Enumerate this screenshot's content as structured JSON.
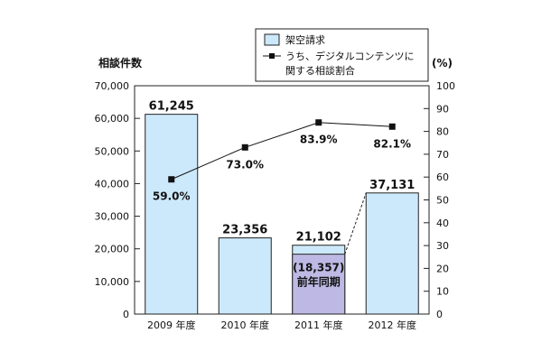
{
  "chart_data": {
    "type": "bar",
    "categories": [
      "2009 年度",
      "2010 年度",
      "2011 年度",
      "2012 年度"
    ],
    "series": [
      {
        "name": "架空請求",
        "values": [
          61245,
          23356,
          21102,
          37131
        ],
        "value_labels": [
          "61,245",
          "23,356",
          "21,102",
          "37,131"
        ],
        "color": "#cce9fb"
      },
      {
        "name": "うち、デジタルコンテンツに関する相談割合",
        "type": "line",
        "axis": "right",
        "values": [
          59.0,
          73.0,
          83.9,
          82.1
        ],
        "value_labels": [
          "59.0%",
          "73.0%",
          "83.9%",
          "82.1%"
        ],
        "color": "#111111"
      }
    ],
    "comparison": {
      "category": "2011 年度",
      "value": 18357,
      "value_label": "(18,357)",
      "label": "前年同期",
      "color": "#bdb9e4"
    },
    "ylabel": "相談件数",
    "ylim": [
      0,
      70000
    ],
    "yticks": [
      0,
      10000,
      20000,
      30000,
      40000,
      50000,
      60000,
      70000
    ],
    "ytick_labels": [
      "0",
      "10,000",
      "20,000",
      "30,000",
      "40,000",
      "50,000",
      "60,000",
      "70,000"
    ],
    "y2label": "(%)",
    "y2lim": [
      0,
      100
    ],
    "y2ticks": [
      0,
      10,
      20,
      30,
      40,
      50,
      60,
      70,
      80,
      90,
      100
    ],
    "y2tick_labels": [
      "0",
      "10",
      "20",
      "30",
      "40",
      "50",
      "60",
      "70",
      "80",
      "90",
      "100"
    ],
    "legend": {
      "placement": "top-right",
      "items": [
        "架空請求",
        "うち、デジタルコンテンツに",
        "関する相談割合"
      ]
    },
    "grid": false
  }
}
